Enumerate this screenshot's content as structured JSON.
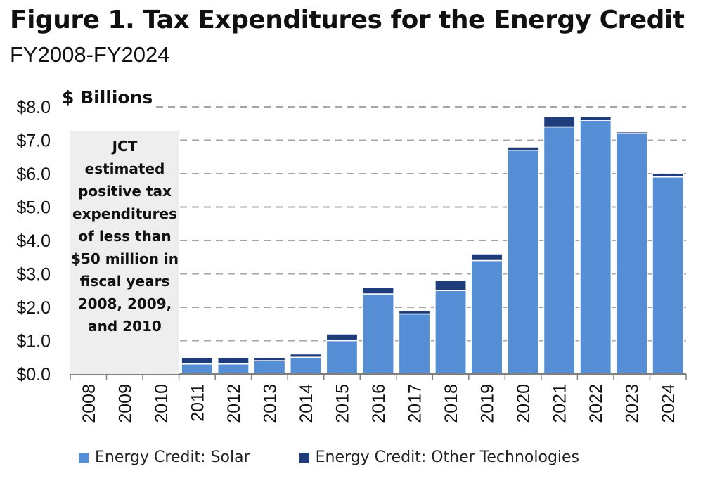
{
  "title": "Figure 1. Tax Expenditures for the Energy Credit",
  "subtitle": "FY2008-FY2024",
  "unit_label": "$ Billions",
  "note": "JCT estimated positive tax expenditures of less than $50 million in fiscal years 2008, 2009, and 2010",
  "colors": {
    "solar": "#558ed5",
    "other": "#1f3d7a",
    "grid": "#a6a6a6",
    "note_bg": "#eeeeee"
  },
  "legend": [
    {
      "label": "Energy Credit: Solar",
      "color": "#558ed5"
    },
    {
      "label": "Energy Credit: Other Technologies",
      "color": "#1f3d7a"
    }
  ],
  "chart_data": {
    "type": "bar",
    "stacked": true,
    "title": "Figure 1. Tax Expenditures for the Energy Credit",
    "subtitle": "FY2008-FY2024",
    "ylabel": "$ Billions",
    "ylim": [
      0,
      8
    ],
    "yticks": [
      "$0.0",
      "$1.0",
      "$2.0",
      "$3.0",
      "$4.0",
      "$5.0",
      "$6.0",
      "$7.0",
      "$8.0"
    ],
    "grid": "horizontal dashed",
    "legend_position": "bottom",
    "categories": [
      "2008",
      "2009",
      "2010",
      "2011",
      "2012",
      "2013",
      "2014",
      "2015",
      "2016",
      "2017",
      "2018",
      "2019",
      "2020",
      "2021",
      "2022",
      "2023",
      "2024"
    ],
    "series": [
      {
        "name": "Energy Credit: Solar",
        "values": [
          0,
          0,
          0,
          0.3,
          0.3,
          0.4,
          0.5,
          1.0,
          2.4,
          1.8,
          2.5,
          3.4,
          6.7,
          7.4,
          7.6,
          7.2,
          5.9
        ]
      },
      {
        "name": "Energy Credit: Other Technologies",
        "values": [
          0,
          0,
          0,
          0.2,
          0.2,
          0.1,
          0.1,
          0.2,
          0.2,
          0.1,
          0.3,
          0.2,
          0.1,
          0.3,
          0.1,
          0.05,
          0.1
        ]
      }
    ]
  }
}
